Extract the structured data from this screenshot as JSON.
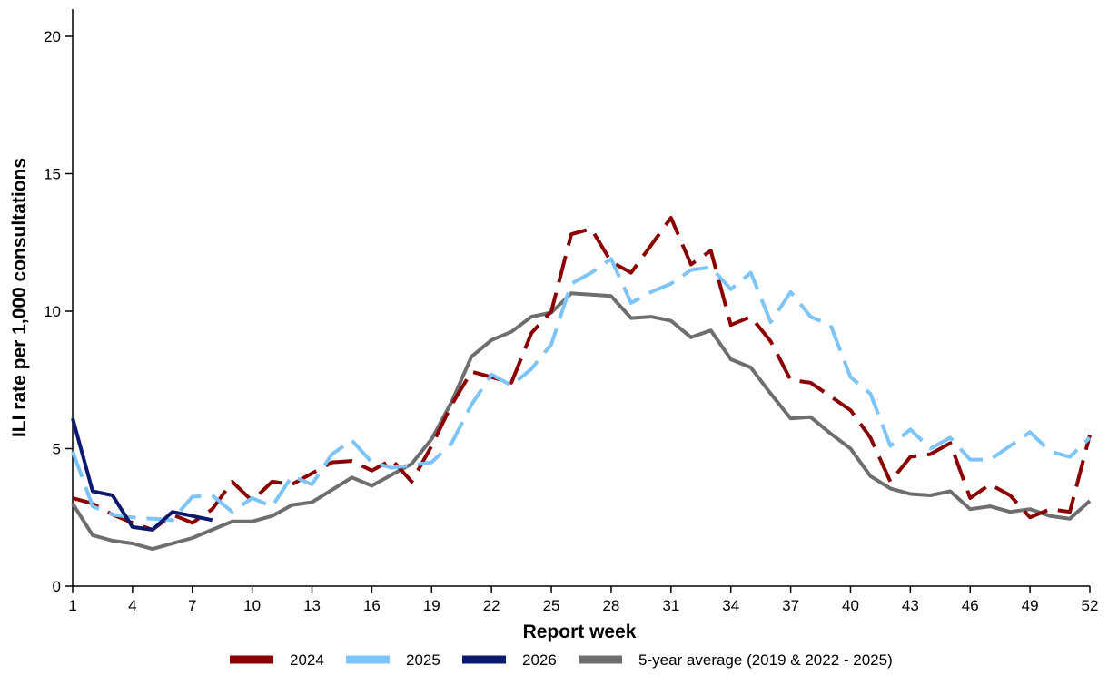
{
  "chart_data": {
    "type": "line",
    "xlabel": "Report week",
    "ylabel": "ILI rate per 1,000 consultations",
    "xlim": [
      1,
      52
    ],
    "ylim": [
      0,
      20
    ],
    "x_ticks": [
      1,
      4,
      7,
      10,
      13,
      16,
      19,
      22,
      25,
      28,
      31,
      34,
      37,
      40,
      43,
      46,
      49,
      52
    ],
    "y_ticks": [
      0,
      5,
      10,
      15,
      20
    ],
    "grid": false,
    "legend_position": "bottom",
    "series": [
      {
        "name": "2024",
        "color": "#8b0000",
        "dash": "dashed",
        "x": [
          1,
          2,
          3,
          4,
          5,
          6,
          7,
          8,
          9,
          10,
          11,
          12,
          13,
          14,
          15,
          16,
          17,
          18,
          19,
          20,
          21,
          22,
          23,
          24,
          25,
          26,
          27,
          28,
          29,
          30,
          31,
          32,
          33,
          34,
          35,
          36,
          37,
          38,
          39,
          40,
          41,
          42,
          43,
          44,
          45,
          46,
          47,
          48,
          49,
          50,
          51,
          52
        ],
        "y": [
          3.2,
          3.0,
          2.6,
          2.3,
          2.05,
          2.6,
          2.3,
          2.8,
          3.8,
          3.1,
          3.8,
          3.7,
          4.1,
          4.5,
          4.55,
          4.2,
          4.6,
          3.8,
          5.1,
          6.6,
          7.8,
          7.6,
          7.4,
          9.2,
          10.0,
          12.8,
          13.0,
          11.8,
          11.4,
          12.4,
          13.4,
          11.7,
          12.2,
          9.5,
          9.8,
          8.9,
          7.5,
          7.4,
          6.9,
          6.4,
          5.4,
          3.8,
          4.7,
          4.8,
          5.2,
          3.2,
          3.7,
          3.3,
          2.5,
          2.8,
          2.7,
          5.5
        ]
      },
      {
        "name": "2025",
        "color": "#7cc4f9",
        "dash": "dashed",
        "x": [
          1,
          2,
          3,
          4,
          5,
          6,
          7,
          8,
          9,
          10,
          11,
          12,
          13,
          14,
          15,
          16,
          17,
          18,
          19,
          20,
          21,
          22,
          23,
          24,
          25,
          26,
          27,
          28,
          29,
          30,
          31,
          32,
          33,
          34,
          35,
          36,
          37,
          38,
          39,
          40,
          41,
          42,
          43,
          44,
          45,
          46,
          47,
          48,
          49,
          50,
          51,
          52
        ],
        "y": [
          4.9,
          2.9,
          2.6,
          2.5,
          2.45,
          2.4,
          3.25,
          3.3,
          2.7,
          3.2,
          2.9,
          4.0,
          3.7,
          4.8,
          5.3,
          4.5,
          4.3,
          4.4,
          4.5,
          5.2,
          6.6,
          7.7,
          7.3,
          7.9,
          8.8,
          11.0,
          11.4,
          11.9,
          10.3,
          10.7,
          11.0,
          11.5,
          11.6,
          10.8,
          11.4,
          9.6,
          10.7,
          9.8,
          9.5,
          7.6,
          7.0,
          5.1,
          5.7,
          5.0,
          5.4,
          4.6,
          4.6,
          5.1,
          5.6,
          4.9,
          4.7,
          5.4
        ]
      },
      {
        "name": "2026",
        "color": "#0b1a6e",
        "dash": "solid",
        "x": [
          1,
          2,
          3,
          4,
          5,
          6,
          7,
          8
        ],
        "y": [
          6.1,
          3.45,
          3.3,
          2.15,
          2.05,
          2.7,
          2.55,
          2.4
        ]
      },
      {
        "name": "5-year average (2019 & 2022 - 2025)",
        "color": "#6e6e6e",
        "dash": "solid",
        "x": [
          1,
          2,
          3,
          4,
          5,
          6,
          7,
          8,
          9,
          10,
          11,
          12,
          13,
          14,
          15,
          16,
          17,
          18,
          19,
          20,
          21,
          22,
          23,
          24,
          25,
          26,
          27,
          28,
          29,
          30,
          31,
          32,
          33,
          34,
          35,
          36,
          37,
          38,
          39,
          40,
          41,
          42,
          43,
          44,
          45,
          46,
          47,
          48,
          49,
          50,
          51,
          52
        ],
        "y": [
          3.0,
          1.85,
          1.65,
          1.55,
          1.35,
          1.55,
          1.75,
          2.05,
          2.35,
          2.35,
          2.55,
          2.95,
          3.05,
          3.5,
          3.95,
          3.65,
          4.05,
          4.45,
          5.35,
          6.7,
          8.35,
          8.95,
          9.25,
          9.8,
          9.95,
          10.65,
          10.6,
          10.55,
          9.75,
          9.8,
          9.65,
          9.05,
          9.3,
          8.25,
          7.95,
          7.0,
          6.1,
          6.15,
          5.55,
          5.0,
          4.0,
          3.55,
          3.35,
          3.3,
          3.45,
          2.8,
          2.9,
          2.7,
          2.8,
          2.55,
          2.45,
          3.1
        ]
      }
    ]
  }
}
